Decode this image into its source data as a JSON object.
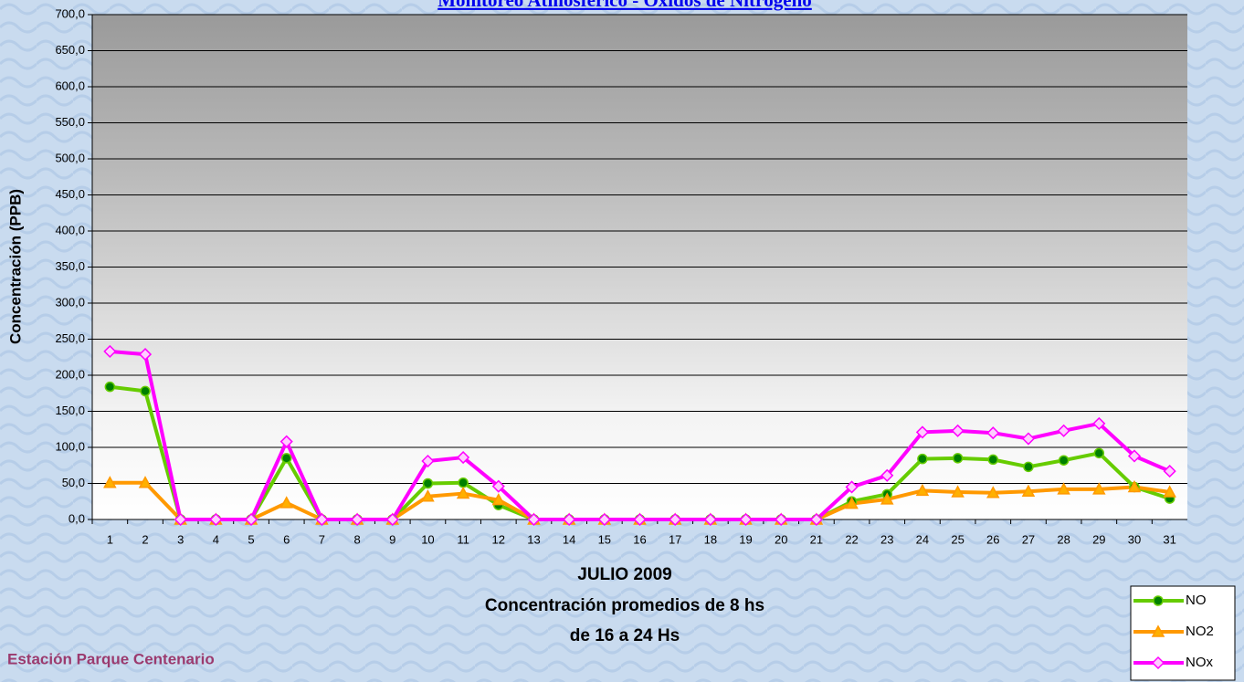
{
  "chart_data": {
    "type": "line",
    "title": "Monitoreo Atmosférico - Óxidos de Nitrógeno",
    "y_label": "Concentración  (PPB)",
    "x_label": [
      "JULIO 2009",
      "Concentración promedios de 8 hs",
      "de 16 a 24 Hs"
    ],
    "footer": "Estación Parque Centenario",
    "categories": [
      "1",
      "2",
      "3",
      "4",
      "5",
      "6",
      "7",
      "8",
      "9",
      "10",
      "11",
      "12",
      "13",
      "14",
      "15",
      "16",
      "17",
      "18",
      "19",
      "20",
      "21",
      "22",
      "23",
      "24",
      "25",
      "26",
      "27",
      "28",
      "29",
      "30",
      "31"
    ],
    "series": [
      {
        "name": "NO",
        "color": "#66cc00",
        "marker": "circle",
        "marker_color": "#008000",
        "values": [
          184,
          178,
          0,
          0,
          0,
          85,
          0,
          0,
          0,
          50,
          51,
          20,
          0,
          0,
          0,
          0,
          0,
          0,
          0,
          0,
          0,
          25,
          35,
          84,
          85,
          83,
          73,
          82,
          92,
          45,
          29
        ]
      },
      {
        "name": "NO2",
        "color": "#ff9900",
        "marker": "triangle",
        "marker_color": "#ffb000",
        "values": [
          51,
          51,
          0,
          0,
          0,
          23,
          0,
          0,
          0,
          32,
          36,
          27,
          0,
          0,
          0,
          0,
          0,
          0,
          0,
          0,
          0,
          22,
          28,
          40,
          38,
          37,
          39,
          42,
          42,
          45,
          38
        ]
      },
      {
        "name": "NOx",
        "color": "#ff00ff",
        "marker": "diamond",
        "marker_color": "#ffccff",
        "values": [
          233,
          229,
          0,
          0,
          0,
          108,
          0,
          0,
          0,
          81,
          86,
          46,
          0,
          0,
          0,
          0,
          0,
          0,
          0,
          0,
          0,
          45,
          61,
          121,
          123,
          120,
          112,
          123,
          133,
          88,
          67
        ]
      }
    ],
    "ylim": [
      0,
      700
    ],
    "yticks": [
      {
        "value": 0,
        "label": "0,0"
      },
      {
        "value": 50,
        "label": "50,0"
      },
      {
        "value": 100,
        "label": "100,0"
      },
      {
        "value": 150,
        "label": "150,0"
      },
      {
        "value": 200,
        "label": "200,0"
      },
      {
        "value": 250,
        "label": "250,0"
      },
      {
        "value": 300,
        "label": "300,0"
      },
      {
        "value": 350,
        "label": "350,0"
      },
      {
        "value": 400,
        "label": "400,0"
      },
      {
        "value": 450,
        "label": "450,0"
      },
      {
        "value": 500,
        "label": "500,0"
      },
      {
        "value": 550,
        "label": "550,0"
      },
      {
        "value": 600,
        "label": "600,0"
      },
      {
        "value": 650,
        "label": "650,0"
      },
      {
        "value": 700,
        "label": "700,0"
      }
    ],
    "grid": true,
    "legend": "bottom-right"
  }
}
